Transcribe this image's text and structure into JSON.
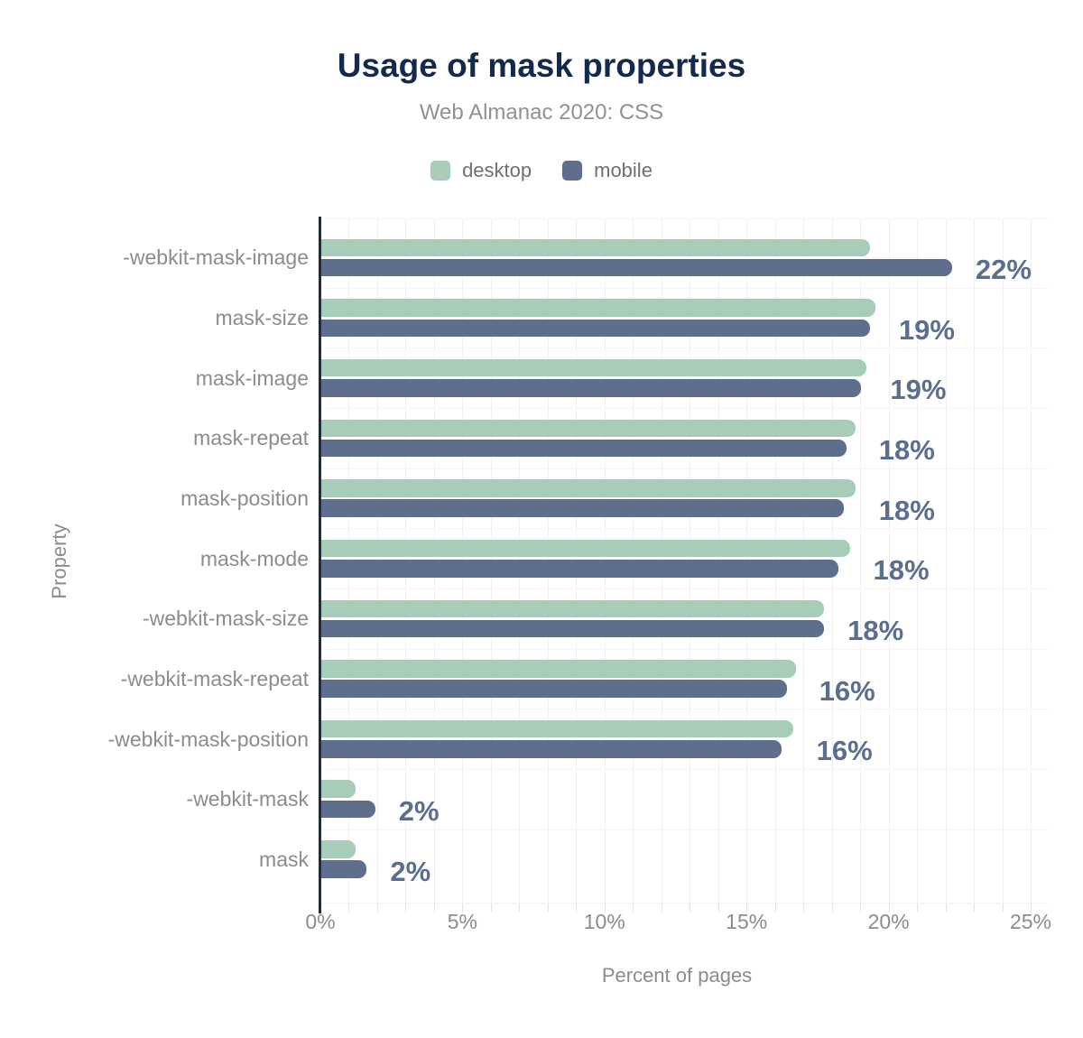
{
  "title": "Usage of mask properties",
  "subtitle": "Web Almanac 2020: CSS",
  "legend": {
    "items": [
      {
        "label": "desktop",
        "color": "#a7ccb8"
      },
      {
        "label": "mobile",
        "color": "#5f6e8c"
      }
    ]
  },
  "colors": {
    "title": "#142a4d",
    "subtitle": "#919191",
    "desktop_bar": "#a7ccb8",
    "mobile_bar": "#5f6e8c",
    "value_label": "#5b6e8e",
    "axis_line": "#1d2c47",
    "tick_text": "#8c8c8c",
    "gridline": "#f0f0f1"
  },
  "chart_data": {
    "type": "bar",
    "orientation": "horizontal",
    "title": "Usage of mask properties",
    "subtitle": "Web Almanac 2020: CSS",
    "xlabel": "Percent of pages",
    "ylabel": "Property",
    "legend_position": "top",
    "grid": "vertical minor gridlines every 1%",
    "xlim": [
      0,
      25.7
    ],
    "x_ticks": [
      {
        "value": 0,
        "label": "0%"
      },
      {
        "value": 5,
        "label": "5%"
      },
      {
        "value": 10,
        "label": "10%"
      },
      {
        "value": 15,
        "label": "15%"
      },
      {
        "value": 20,
        "label": "20%"
      },
      {
        "value": 25,
        "label": "25%"
      }
    ],
    "categories": [
      "-webkit-mask-image",
      "mask-size",
      "mask-image",
      "mask-repeat",
      "mask-position",
      "mask-mode",
      "-webkit-mask-size",
      "-webkit-mask-repeat",
      "-webkit-mask-position",
      "-webkit-mask",
      "mask"
    ],
    "series": [
      {
        "name": "desktop",
        "values": [
          19.3,
          19.5,
          19.2,
          18.8,
          18.8,
          18.6,
          17.7,
          16.7,
          16.6,
          1.2,
          1.2
        ]
      },
      {
        "name": "mobile",
        "values": [
          22.2,
          19.3,
          19.0,
          18.5,
          18.4,
          18.2,
          17.7,
          16.4,
          16.2,
          1.9,
          1.6
        ]
      }
    ],
    "bar_labels": [
      "22%",
      "19%",
      "19%",
      "18%",
      "18%",
      "18%",
      "18%",
      "16%",
      "16%",
      "2%",
      "2%"
    ]
  }
}
